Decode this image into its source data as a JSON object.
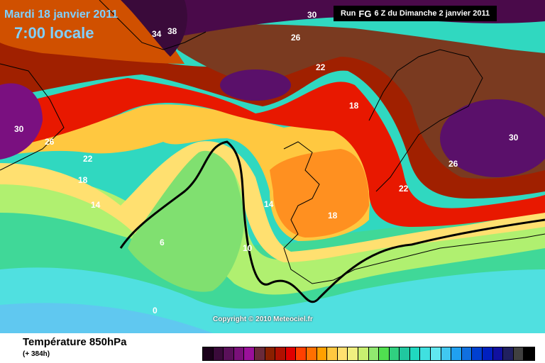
{
  "header": {
    "date": "Mardi 18 janvier 2011",
    "local_time": "7:00 locale",
    "run_prefix": "Run",
    "run_model": "FG",
    "run_suffix": "6 Z du Dimanche 2 janvier 2011"
  },
  "map": {
    "contour_labels": [
      "34",
      "38",
      "30",
      "26",
      "22",
      "18",
      "30",
      "26",
      "22",
      "18",
      "14",
      "6",
      "0",
      "14",
      "10",
      "18",
      "22",
      "26",
      "30"
    ],
    "copyright": "Copyright © 2010 Meteociel.fr"
  },
  "legend": {
    "title": "Température 850hPa",
    "subtitle": "(+ 384h)",
    "colors": [
      "#1a001a",
      "#3a0a3a",
      "#5a105a",
      "#7a107a",
      "#9a109a",
      "#6a2a3a",
      "#8a2000",
      "#b01000",
      "#e00000",
      "#ff4000",
      "#ff7000",
      "#ffa000",
      "#ffc840",
      "#ffe070",
      "#f0f080",
      "#c8f070",
      "#90e870",
      "#50e050",
      "#30d080",
      "#20c8a0",
      "#20d8c0",
      "#40e0e0",
      "#60e8f0",
      "#40c8f0",
      "#20a0f0",
      "#1070e0",
      "#0040d0",
      "#0020c0",
      "#1010a0",
      "#202060",
      "#404040",
      "#000000"
    ]
  }
}
